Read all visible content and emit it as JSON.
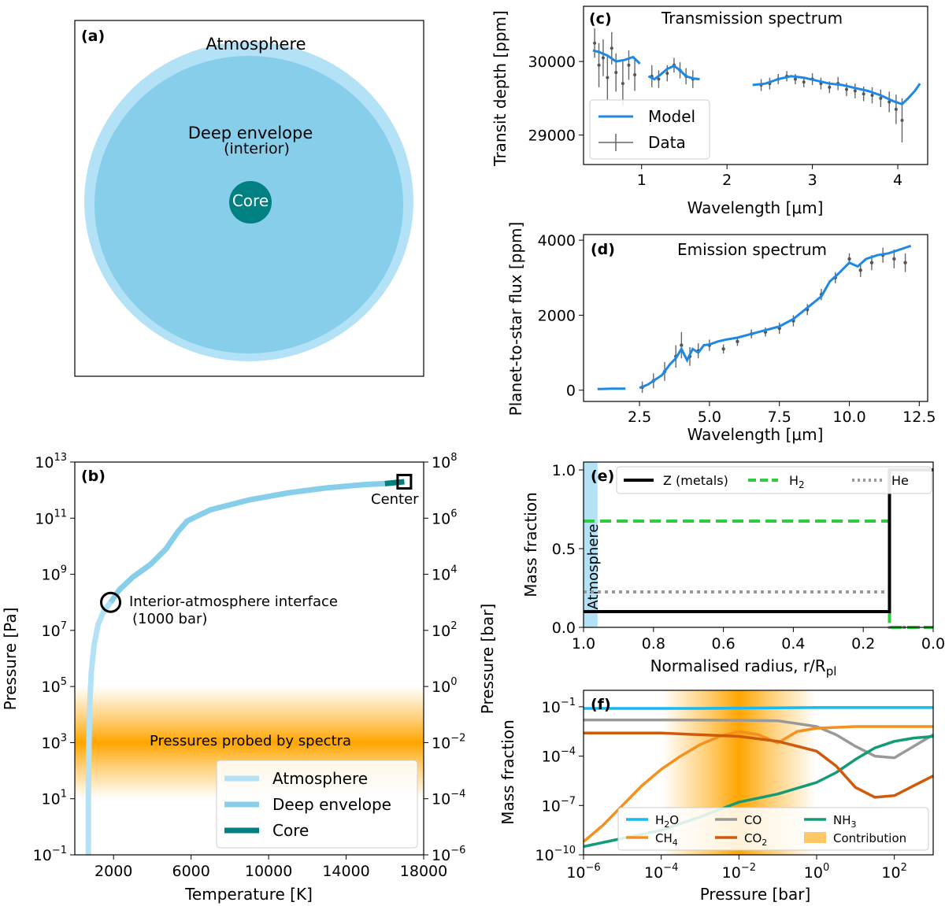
{
  "figure": {
    "panel_a": {
      "label": "(a)",
      "atmosphere": "Atmosphere",
      "envelope_line1": "Deep envelope",
      "envelope_line2": "(interior)",
      "core": "Core",
      "colors": {
        "atmosphere": "#b3e2f7",
        "envelope": "#87ceeb",
        "core": "#008080"
      }
    }
  },
  "chart_data": [
    {
      "id": "c",
      "type": "line",
      "label": "(c)",
      "title": "Transmission spectrum",
      "xlabel": "Wavelength [μm]",
      "ylabel": "Transit depth [ppm]",
      "xlim": [
        0.32,
        4.35
      ],
      "ylim": [
        28600,
        30750
      ],
      "xticks": [
        1,
        2,
        3,
        4
      ],
      "xtick_labels": [
        "1",
        "2",
        "3",
        "4"
      ],
      "yticks": [
        29000,
        30000
      ],
      "ytick_labels": [
        "29000",
        "30000"
      ],
      "legend": [
        "Model",
        "Data"
      ],
      "legend_position": "lower-left",
      "model_color": "#1e88e5",
      "model_segments": [
        {
          "x": [
            0.43,
            0.5,
            0.6,
            0.7,
            0.8,
            0.9,
            0.98
          ],
          "y": [
            30150,
            30130,
            30080,
            30000,
            30020,
            30060,
            29970
          ]
        },
        {
          "x": [
            1.08,
            1.15,
            1.22,
            1.3,
            1.38,
            1.45,
            1.52,
            1.6,
            1.68
          ],
          "y": [
            29800,
            29760,
            29820,
            29900,
            29940,
            29880,
            29800,
            29770,
            29760
          ]
        },
        {
          "x": [
            2.3,
            2.45,
            2.6,
            2.75,
            2.9,
            3.05,
            3.2,
            3.35,
            3.5,
            3.65,
            3.8,
            3.95,
            4.05,
            4.12,
            4.2,
            4.26
          ],
          "y": [
            29680,
            29700,
            29760,
            29800,
            29780,
            29740,
            29700,
            29680,
            29640,
            29600,
            29540,
            29460,
            29420,
            29500,
            29600,
            29700
          ]
        }
      ],
      "data_points": [
        [
          0.45,
          30250,
          200
        ],
        [
          0.5,
          29950,
          300
        ],
        [
          0.55,
          30050,
          250
        ],
        [
          0.6,
          29780,
          300
        ],
        [
          0.65,
          30180,
          220
        ],
        [
          0.7,
          29850,
          260
        ],
        [
          0.78,
          29700,
          300
        ],
        [
          0.85,
          29950,
          200
        ],
        [
          0.92,
          29820,
          220
        ],
        [
          1.12,
          29800,
          150
        ],
        [
          1.2,
          29760,
          120
        ],
        [
          1.3,
          29840,
          110
        ],
        [
          1.38,
          29950,
          100
        ],
        [
          1.45,
          29880,
          110
        ],
        [
          1.52,
          29800,
          110
        ],
        [
          1.6,
          29760,
          120
        ],
        [
          2.4,
          29680,
          80
        ],
        [
          2.5,
          29700,
          80
        ],
        [
          2.6,
          29760,
          70
        ],
        [
          2.7,
          29800,
          70
        ],
        [
          2.8,
          29760,
          70
        ],
        [
          2.9,
          29720,
          70
        ],
        [
          3.0,
          29760,
          80
        ],
        [
          3.1,
          29700,
          80
        ],
        [
          3.2,
          29650,
          80
        ],
        [
          3.3,
          29700,
          90
        ],
        [
          3.4,
          29620,
          90
        ],
        [
          3.5,
          29600,
          100
        ],
        [
          3.6,
          29560,
          100
        ],
        [
          3.7,
          29540,
          110
        ],
        [
          3.8,
          29500,
          120
        ],
        [
          3.9,
          29450,
          140
        ],
        [
          3.98,
          29350,
          200
        ],
        [
          4.05,
          29200,
          300
        ]
      ]
    },
    {
      "id": "d",
      "type": "line",
      "label": "(d)",
      "title": "Emission spectrum",
      "xlabel": "Wavelength [μm]",
      "ylabel": "Planet-to-star flux [ppm]",
      "xlim": [
        0.5,
        12.8
      ],
      "ylim": [
        -300,
        4150
      ],
      "xticks": [
        2.5,
        5.0,
        7.5,
        10.0,
        12.5
      ],
      "xtick_labels": [
        "2.5",
        "5.0",
        "7.5",
        "10.0",
        "12.5"
      ],
      "yticks": [
        0,
        2000,
        4000
      ],
      "ytick_labels": [
        "0",
        "2000",
        "4000"
      ],
      "model_color": "#1e88e5",
      "model_segments": [
        {
          "x": [
            1.0,
            1.5,
            2.0
          ],
          "y": [
            30,
            40,
            40
          ]
        },
        {
          "x": [
            2.5,
            2.8,
            3.0,
            3.3,
            3.6,
            3.8,
            4.0,
            4.2,
            4.4,
            4.6,
            4.8,
            5.0,
            5.3,
            5.6,
            6.0,
            6.5,
            7.0,
            7.5,
            8.0,
            8.5,
            9.0,
            9.3,
            9.6,
            10.0,
            10.3,
            10.6,
            11.0,
            11.4,
            11.8,
            12.2
          ],
          "y": [
            60,
            150,
            250,
            400,
            700,
            850,
            1100,
            800,
            1100,
            1000,
            1200,
            1220,
            1300,
            1350,
            1400,
            1500,
            1600,
            1700,
            1900,
            2200,
            2500,
            2900,
            3100,
            3400,
            3300,
            3500,
            3600,
            3650,
            3750,
            3850
          ]
        }
      ],
      "data_points": [
        [
          2.6,
          80,
          150
        ],
        [
          3.0,
          250,
          200
        ],
        [
          3.4,
          500,
          250
        ],
        [
          3.8,
          900,
          300
        ],
        [
          4.0,
          1200,
          350
        ],
        [
          4.3,
          900,
          250
        ],
        [
          4.6,
          1050,
          200
        ],
        [
          5.0,
          1200,
          150
        ],
        [
          5.5,
          1100,
          120
        ],
        [
          6.0,
          1300,
          120
        ],
        [
          6.5,
          1500,
          120
        ],
        [
          7.0,
          1550,
          120
        ],
        [
          7.5,
          1650,
          150
        ],
        [
          8.0,
          1850,
          150
        ],
        [
          8.5,
          2150,
          150
        ],
        [
          9.0,
          2550,
          150
        ],
        [
          9.5,
          3000,
          150
        ],
        [
          10.0,
          3500,
          150
        ],
        [
          10.4,
          3200,
          180
        ],
        [
          10.8,
          3400,
          200
        ],
        [
          11.2,
          3600,
          200
        ],
        [
          11.6,
          3500,
          250
        ],
        [
          12.0,
          3400,
          250
        ]
      ]
    },
    {
      "id": "b",
      "type": "line",
      "label": "(b)",
      "xlabel": "Temperature [K]",
      "ylabel": "Pressure [Pa]",
      "ylabel_right": "Pressure [bar]",
      "xlim": [
        0,
        18000
      ],
      "ylim_log10_pa": [
        -1,
        13
      ],
      "xticks": [
        2000,
        6000,
        10000,
        14000,
        18000
      ],
      "xtick_labels": [
        "2000",
        "6000",
        "10000",
        "14000",
        "18000"
      ],
      "yticks_left": [
        {
          "base": "10",
          "exp": "13"
        },
        {
          "base": "10",
          "exp": "11"
        },
        {
          "base": "10",
          "exp": "9"
        },
        {
          "base": "10",
          "exp": "7"
        },
        {
          "base": "10",
          "exp": "5"
        },
        {
          "base": "10",
          "exp": "3"
        },
        {
          "base": "10",
          "exp": "1"
        },
        {
          "base": "10",
          "exp": "−1"
        }
      ],
      "yticks_left_exp": [
        13,
        11,
        9,
        7,
        5,
        3,
        1,
        -1
      ],
      "yticks_right": [
        {
          "base": "10",
          "exp": "8"
        },
        {
          "base": "10",
          "exp": "6"
        },
        {
          "base": "10",
          "exp": "4"
        },
        {
          "base": "10",
          "exp": "2"
        },
        {
          "base": "10",
          "exp": "0"
        },
        {
          "base": "10",
          "exp": "−2"
        },
        {
          "base": "10",
          "exp": "−4"
        },
        {
          "base": "10",
          "exp": "−6"
        }
      ],
      "band_label": "Pressures probed by spectra",
      "band_center_log10_pa": 3.5,
      "interface_label_1": "Interior-atmosphere interface",
      "interface_label_2": "(1000 bar)",
      "interface_point": [
        1850,
        8
      ],
      "center_label": "Center",
      "center_point": [
        17000,
        12.3
      ],
      "legend": [
        "Atmosphere",
        "Deep envelope",
        "Core"
      ],
      "legend_position": "lower-right",
      "colors": {
        "atmosphere": "#b3e2f7",
        "envelope": "#87ceeb",
        "core": "#008080",
        "band": "#ffa500"
      },
      "atmosphere_T": [
        700,
        700,
        710,
        730,
        760,
        790,
        850,
        1000,
        1200,
        1500,
        1850
      ],
      "atmosphere_logP": [
        -1,
        1,
        2,
        3,
        3.8,
        4.6,
        5.5,
        6.5,
        7.2,
        7.7,
        8.0
      ],
      "envelope_T": [
        1850,
        2300,
        3000,
        3900,
        4700,
        5300,
        5800,
        7000,
        9000,
        11000,
        13000,
        15000,
        16000
      ],
      "envelope_logP": [
        8.0,
        8.45,
        8.9,
        9.35,
        9.9,
        10.5,
        10.9,
        11.3,
        11.65,
        11.9,
        12.08,
        12.2,
        12.23
      ],
      "core_T": [
        16000,
        17000
      ],
      "core_logP": [
        12.23,
        12.3
      ]
    },
    {
      "id": "e",
      "type": "line",
      "label": "(e)",
      "xlabel": "Normalised radius, r/R",
      "xlabel_sub": "pl",
      "ylabel": "Mass fraction",
      "xlim": [
        1.0,
        0.0
      ],
      "ylim": [
        0,
        1.05
      ],
      "xticks": [
        1.0,
        0.8,
        0.6,
        0.4,
        0.2,
        0.0
      ],
      "xtick_labels": [
        "1.0",
        "0.8",
        "0.6",
        "0.4",
        "0.2",
        "0.0"
      ],
      "yticks": [
        0.0,
        0.5,
        1.0
      ],
      "ytick_labels": [
        "0.0",
        "0.5",
        "1.0"
      ],
      "atmosphere_label": "Atmosphere",
      "atmosphere_band": [
        1.0,
        0.96
      ],
      "legend": [
        "Z (metals)",
        "H",
        "He"
      ],
      "legend_h2_sub": "2",
      "legend_position": "top",
      "series": [
        {
          "name": "Z (metals)",
          "x": [
            1.0,
            0.125,
            0.125,
            0.0
          ],
          "y": [
            0.1,
            0.1,
            1.0,
            1.0
          ],
          "color": "#000000"
        },
        {
          "name": "H2",
          "x": [
            1.0,
            0.125,
            0.125,
            0.0
          ],
          "y": [
            0.675,
            0.675,
            0.0,
            0.0
          ],
          "color": "#2ecc40"
        },
        {
          "name": "He",
          "x": [
            1.0,
            0.125,
            0.125,
            0.0
          ],
          "y": [
            0.225,
            0.225,
            0.0,
            0.0
          ],
          "color": "#999999"
        }
      ]
    },
    {
      "id": "f",
      "type": "line",
      "label": "(f)",
      "xlabel": "Pressure [bar]",
      "ylabel": "Mass fraction",
      "xlim_log10": [
        -6,
        3
      ],
      "ylim_log10": [
        -10,
        0
      ],
      "xticks_exp": [
        -6,
        -4,
        -2,
        0,
        2
      ],
      "xticks": [
        {
          "base": "10",
          "exp": "−6"
        },
        {
          "base": "10",
          "exp": "−4"
        },
        {
          "base": "10",
          "exp": "−2"
        },
        {
          "base": "10",
          "exp": "0"
        },
        {
          "base": "10",
          "exp": "2"
        }
      ],
      "yticks_exp": [
        -1,
        -4,
        -7,
        -10
      ],
      "yticks": [
        {
          "base": "10",
          "exp": "−1"
        },
        {
          "base": "10",
          "exp": "−4"
        },
        {
          "base": "10",
          "exp": "−7"
        },
        {
          "base": "10",
          "exp": "−10"
        }
      ],
      "contribution_center_log10": -2,
      "legend_position": "lower-center",
      "legend": [
        {
          "name": "H",
          "sub": "2",
          "tail": "O",
          "color": "#16b9f0"
        },
        {
          "name": "CO",
          "sub": "",
          "tail": "",
          "color": "#999999"
        },
        {
          "name": "NH",
          "sub": "3",
          "tail": "",
          "color": "#149a76"
        },
        {
          "name": "CH",
          "sub": "4",
          "tail": "",
          "color": "#f5901c"
        },
        {
          "name": "CO",
          "sub": "2",
          "tail": "",
          "color": "#cf5a0c"
        },
        {
          "name": "Contribution",
          "sub": "",
          "tail": "",
          "color": "#ffc766"
        }
      ],
      "series": [
        {
          "name": "H2O",
          "x": [
            -6,
            -3,
            0,
            3
          ],
          "y": [
            -1.1,
            -1.1,
            -1.05,
            -1.05
          ],
          "color": "#16b9f0"
        },
        {
          "name": "CO",
          "x": [
            -6,
            -4,
            -2,
            -1,
            0,
            0.5,
            1,
            1.5,
            2,
            2.5,
            3
          ],
          "y": [
            -1.8,
            -1.8,
            -1.82,
            -1.85,
            -2.2,
            -2.7,
            -3.4,
            -4.0,
            -4.1,
            -3.4,
            -2.7
          ],
          "color": "#999999"
        },
        {
          "name": "NH3",
          "x": [
            -6,
            -4,
            -3,
            -2,
            -1,
            0,
            0.5,
            1,
            1.5,
            2,
            2.5,
            3
          ],
          "y": [
            -9.5,
            -8.5,
            -7.7,
            -6.8,
            -6.3,
            -5.6,
            -5.0,
            -4.2,
            -3.5,
            -3.1,
            -2.9,
            -2.8
          ],
          "color": "#149a76"
        },
        {
          "name": "CH4",
          "x": [
            -6,
            -5.5,
            -5,
            -4.5,
            -4,
            -3.5,
            -3,
            -2.5,
            -2,
            -1.5,
            -1,
            -0.5,
            0,
            1,
            2,
            3
          ],
          "y": [
            -9.2,
            -8.2,
            -7.0,
            -5.8,
            -4.8,
            -4.0,
            -3.3,
            -2.8,
            -2.5,
            -2.7,
            -3.2,
            -2.5,
            -2.3,
            -2.2,
            -2.2,
            -2.2
          ],
          "color": "#f5901c"
        },
        {
          "name": "CO2",
          "x": [
            -6,
            -4,
            -2,
            -1,
            0,
            0.5,
            1,
            1.5,
            2,
            2.5,
            3
          ],
          "y": [
            -2.6,
            -2.6,
            -2.8,
            -3.1,
            -3.7,
            -4.6,
            -5.9,
            -6.5,
            -6.4,
            -5.8,
            -5.2
          ],
          "color": "#cf5a0c"
        }
      ]
    }
  ]
}
